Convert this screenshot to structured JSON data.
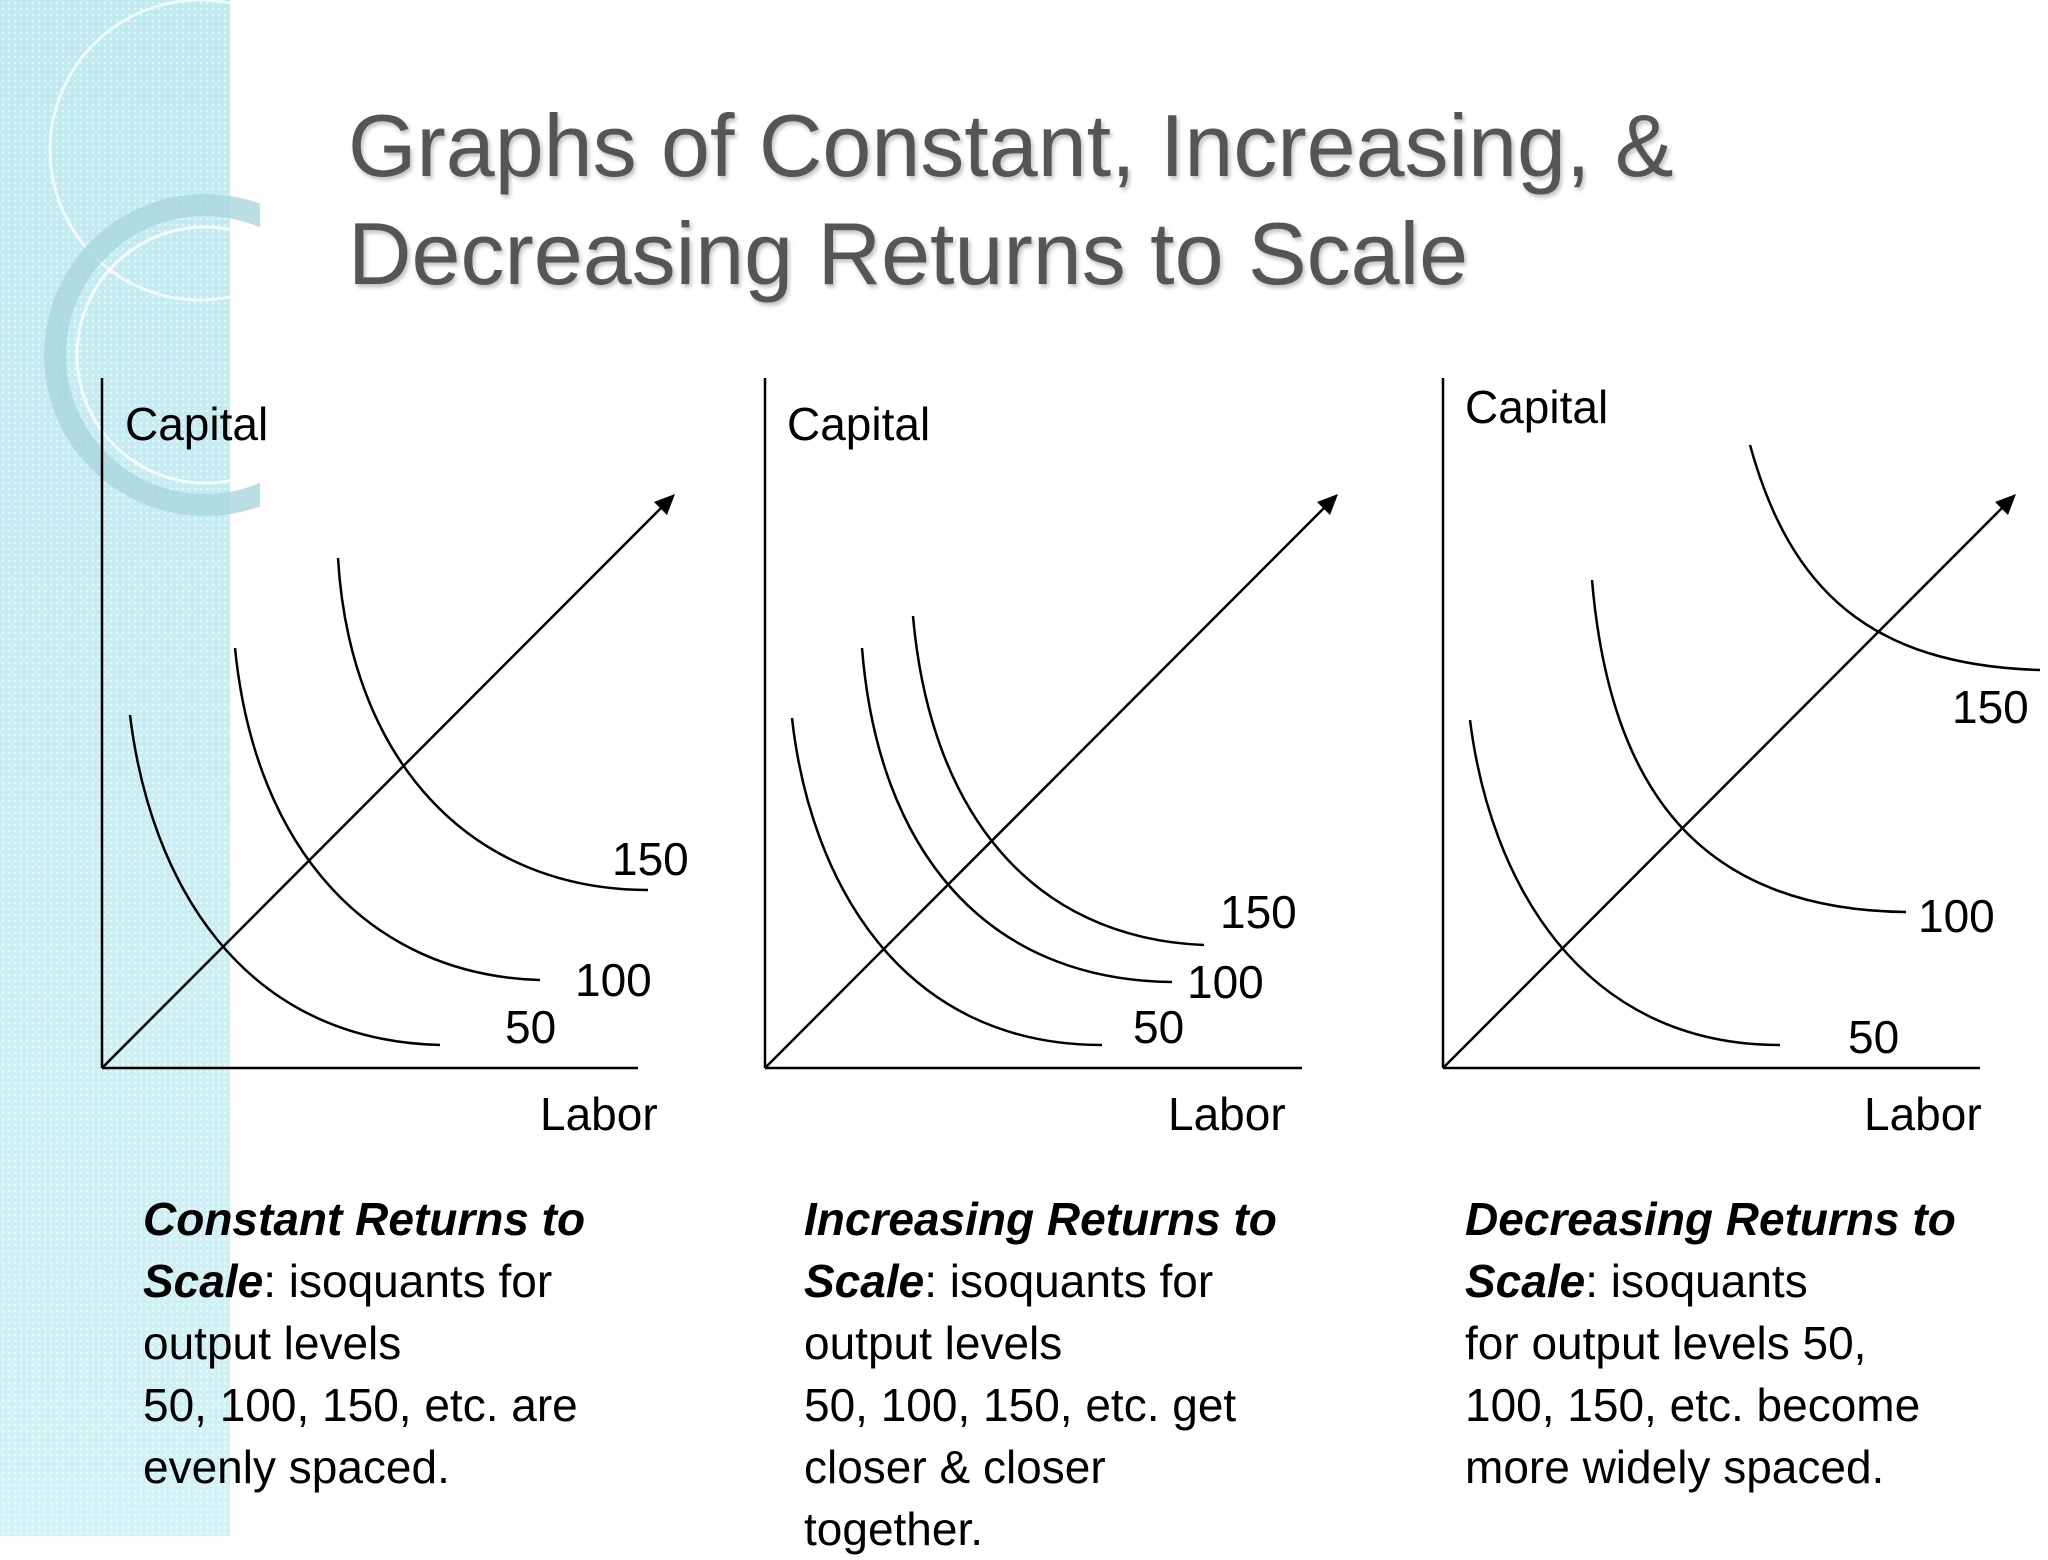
{
  "title": {
    "line1": "Graphs of Constant, Increasing, &",
    "line2": "Decreasing Returns to Scale"
  },
  "graphs": [
    {
      "id": "constant",
      "y_label": "Capital",
      "x_label": "Labor",
      "isoquant_labels": [
        "50",
        "100",
        "150"
      ],
      "caption_head": "Constant Returns to Scale",
      "caption_body": ":  isoquants for\noutput levels\n50, 100, 150, etc. are\nevenly spaced."
    },
    {
      "id": "increasing",
      "y_label": "Capital",
      "x_label": "Labor",
      "isoquant_labels": [
        "50",
        "100",
        "150"
      ],
      "caption_head": "Increasing Returns to Scale",
      "caption_body": ":  isoquants for\noutput levels\n50, 100, 150, etc. get\ncloser & closer\ntogether."
    },
    {
      "id": "decreasing",
      "y_label": "Capital",
      "x_label": "Labor",
      "isoquant_labels": [
        "50",
        "100",
        "150"
      ],
      "caption_head": "Decreasing Returns to Scale",
      "caption_body": ":  isoquants\nfor output levels 50,\n100, 150, etc. become\nmore widely spaced."
    }
  ],
  "colors": {
    "side_band": "#c8eef2",
    "title": "#555555",
    "lines": "#000000"
  }
}
